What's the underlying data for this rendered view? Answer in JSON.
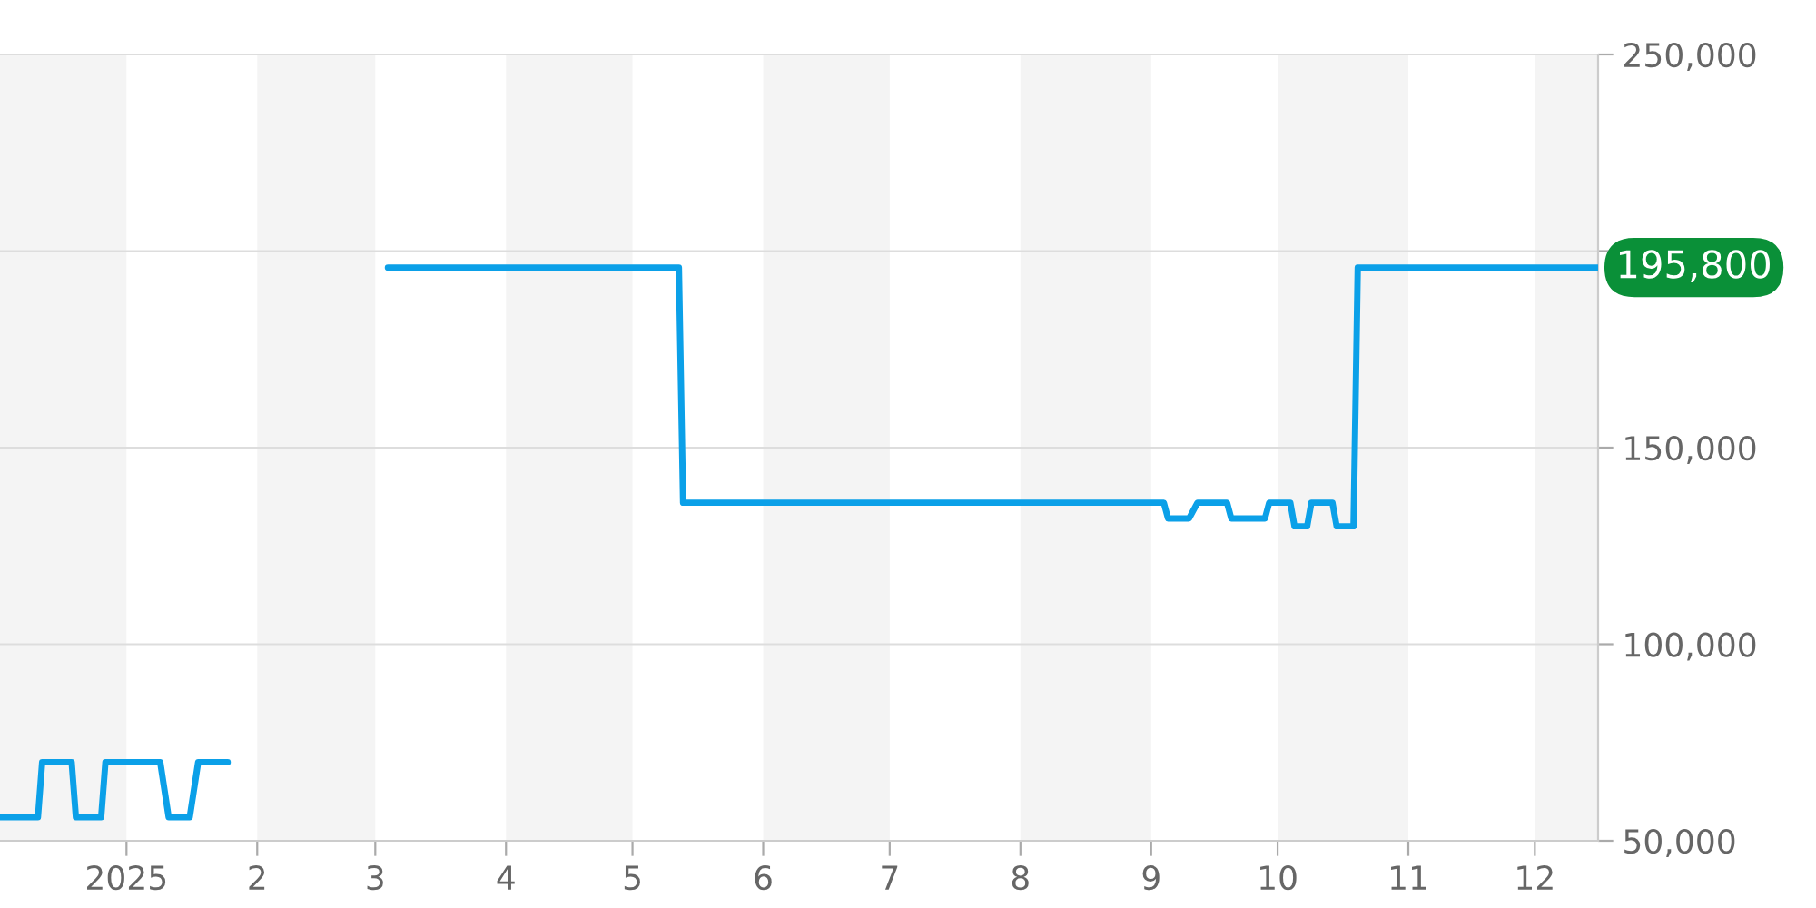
{
  "chart_data": {
    "type": "line",
    "xlim": [
      "2024-12-02",
      "2025-12-16"
    ],
    "xticks": [
      {
        "value": "2025-01-01",
        "label": "2025"
      },
      {
        "value": "2025-02-01",
        "label": "2"
      },
      {
        "value": "2025-03-01",
        "label": "3"
      },
      {
        "value": "2025-04-01",
        "label": "4"
      },
      {
        "value": "2025-05-01",
        "label": "5"
      },
      {
        "value": "2025-06-01",
        "label": "6"
      },
      {
        "value": "2025-07-01",
        "label": "7"
      },
      {
        "value": "2025-08-01",
        "label": "8"
      },
      {
        "value": "2025-09-01",
        "label": "9"
      },
      {
        "value": "2025-10-01",
        "label": "10"
      },
      {
        "value": "2025-11-01",
        "label": "11"
      },
      {
        "value": "2025-12-01",
        "label": "12"
      }
    ],
    "ylim": [
      50000,
      250000
    ],
    "yticks": [
      {
        "value": 50000,
        "label": "50,000"
      },
      {
        "value": 100000,
        "label": "100,000"
      },
      {
        "value": 150000,
        "label": "150,000"
      },
      {
        "value": 200000,
        "label": null
      },
      {
        "value": 250000,
        "label": "250,000"
      }
    ],
    "grid": "y",
    "series": [
      {
        "color": "#0ba0e8",
        "x": [
          "2024-12-02",
          "2024-12-11",
          "2024-12-12",
          "2024-12-19",
          "2024-12-20",
          "2024-12-26",
          "2024-12-27",
          "2025-01-09",
          "2025-01-11",
          "2025-01-16",
          "2025-01-18",
          "2025-01-25",
          "2025-02-15",
          "2025-03-04",
          "2025-05-12",
          "2025-05-13",
          "2025-09-04",
          "2025-09-05",
          "2025-09-10",
          "2025-09-12",
          "2025-09-19",
          "2025-09-20",
          "2025-09-28",
          "2025-09-29",
          "2025-10-04",
          "2025-10-05",
          "2025-10-08",
          "2025-10-09",
          "2025-10-14",
          "2025-10-15",
          "2025-10-19",
          "2025-10-20",
          "2025-12-16"
        ],
        "values": [
          56000,
          56000,
          70000,
          70000,
          56000,
          56000,
          70000,
          70000,
          56000,
          56000,
          70000,
          70000,
          null,
          195800,
          195800,
          136000,
          136000,
          132000,
          132000,
          136000,
          136000,
          132000,
          132000,
          136000,
          136000,
          130000,
          130000,
          136000,
          136000,
          130000,
          130000,
          195800,
          195800
        ]
      }
    ],
    "bands": [
      {
        "axis": "x",
        "from": "2024-12-02",
        "to": "2025-01-01",
        "color": "#f4f4f4"
      },
      {
        "axis": "x",
        "from": "2025-02-01",
        "to": "2025-03-01",
        "color": "#f4f4f4"
      },
      {
        "axis": "x",
        "from": "2025-04-01",
        "to": "2025-05-01",
        "color": "#f4f4f4"
      },
      {
        "axis": "x",
        "from": "2025-06-01",
        "to": "2025-07-01",
        "color": "#f4f4f4"
      },
      {
        "axis": "x",
        "from": "2025-08-01",
        "to": "2025-09-01",
        "color": "#f4f4f4"
      },
      {
        "axis": "x",
        "from": "2025-10-01",
        "to": "2025-11-01",
        "color": "#f4f4f4"
      },
      {
        "axis": "x",
        "from": "2025-12-01",
        "to": "2025-12-16",
        "color": "#f4f4f4"
      }
    ],
    "annotations": [
      {
        "text": "195,800",
        "x": "2025-12-16",
        "y": 195800
      }
    ]
  }
}
